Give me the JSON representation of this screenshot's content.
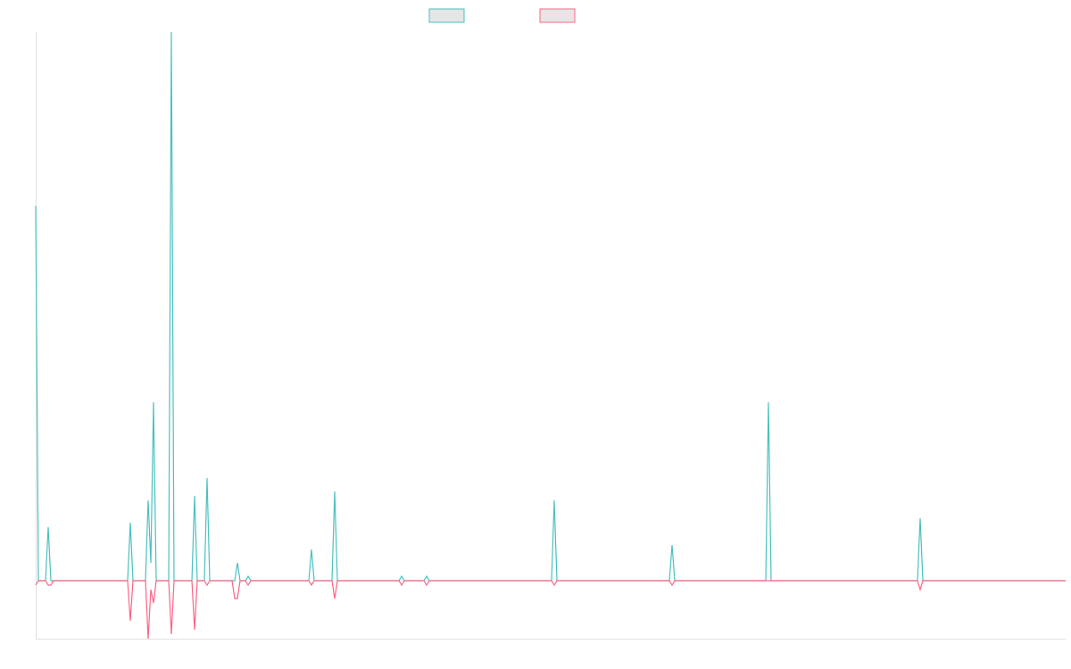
{
  "chart_data": {
    "type": "line",
    "x": [
      0,
      1.5,
      5.5,
      7,
      8.5,
      10,
      51.5,
      53,
      54.5,
      61.5,
      63,
      64.5,
      66,
      67.5,
      74.5,
      76,
      77.5,
      87.5,
      89,
      90.5,
      94.5,
      96,
      97.5,
      110,
      111.5,
      113,
      114.5,
      117.5,
      119,
      120.5,
      153,
      154.5,
      156,
      166,
      167.5,
      169,
      203.5,
      205,
      206.5,
      217.5,
      219,
      220.5,
      289,
      290.5,
      292,
      355,
      356.5,
      358,
      409,
      410.5,
      412,
      494,
      495.5,
      497,
      577
    ],
    "series": [
      {
        "color": "#4bc0c0",
        "values": [
          84,
          0,
          0,
          12,
          0,
          0,
          0,
          13,
          0,
          0,
          18,
          4,
          40,
          0,
          0,
          123,
          0,
          0,
          19,
          0,
          0,
          23,
          0,
          0,
          0,
          4,
          0,
          0,
          1,
          0,
          0,
          7,
          0,
          0,
          20,
          0,
          0,
          1,
          0,
          0,
          1,
          0,
          0,
          18,
          0,
          0,
          8,
          0,
          0,
          40,
          0,
          0,
          14,
          0,
          0
        ]
      },
      {
        "color": "#ff6384",
        "values": [
          -1,
          0,
          0,
          -1,
          -1,
          0,
          0,
          -9,
          0,
          0,
          -13,
          -2,
          -5,
          0,
          0,
          -12,
          0,
          0,
          -11,
          0,
          0,
          -1,
          0,
          0,
          -4,
          -4,
          0,
          0,
          -1,
          0,
          0,
          -1,
          0,
          0,
          -4,
          0,
          0,
          -1,
          0,
          0,
          -1,
          0,
          0,
          -1,
          0,
          0,
          -1,
          0,
          0,
          0,
          0,
          0,
          -2,
          0,
          0
        ]
      }
    ],
    "xlim": [
      0,
      577
    ],
    "ylim": [
      -13,
      123
    ]
  }
}
